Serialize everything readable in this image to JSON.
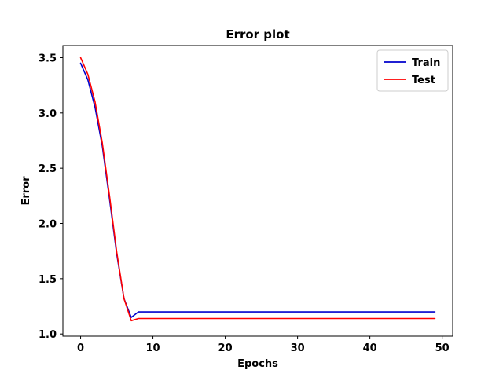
{
  "chart_data": {
    "type": "line",
    "title": "Error plot",
    "xlabel": "Epochs",
    "ylabel": "Error",
    "xlim": [
      -2.45,
      51.45
    ],
    "ylim": [
      0.98,
      3.61
    ],
    "xticks": [
      0,
      10,
      20,
      30,
      40,
      50
    ],
    "yticks": [
      1.0,
      1.5,
      2.0,
      2.5,
      3.0,
      3.5
    ],
    "ytick_labels": [
      "1.0",
      "1.5",
      "2.0",
      "2.5",
      "3.0",
      "3.5"
    ],
    "xtick_labels": [
      "0",
      "10",
      "20",
      "30",
      "40",
      "50"
    ],
    "grid": false,
    "legend": "top-right",
    "series": [
      {
        "name": "Train",
        "color": "#0000cc",
        "x": [
          0,
          1,
          2,
          3,
          4,
          5,
          6,
          7,
          8,
          9,
          10,
          11,
          12,
          13,
          14,
          15,
          16,
          17,
          18,
          19,
          20,
          21,
          22,
          23,
          24,
          25,
          26,
          27,
          28,
          29,
          30,
          31,
          32,
          33,
          34,
          35,
          36,
          37,
          38,
          39,
          40,
          41,
          42,
          43,
          44,
          45,
          46,
          47,
          48,
          49
        ],
        "y": [
          3.45,
          3.3,
          3.05,
          2.7,
          2.22,
          1.72,
          1.32,
          1.15,
          1.2,
          1.2,
          1.2,
          1.2,
          1.2,
          1.2,
          1.2,
          1.2,
          1.2,
          1.2,
          1.2,
          1.2,
          1.2,
          1.2,
          1.2,
          1.2,
          1.2,
          1.2,
          1.2,
          1.2,
          1.2,
          1.2,
          1.2,
          1.2,
          1.2,
          1.2,
          1.2,
          1.2,
          1.2,
          1.2,
          1.2,
          1.2,
          1.2,
          1.2,
          1.2,
          1.2,
          1.2,
          1.2,
          1.2,
          1.2,
          1.2,
          1.2
        ]
      },
      {
        "name": "Test",
        "color": "#ff0000",
        "x": [
          0,
          1,
          2,
          3,
          4,
          5,
          6,
          7,
          8,
          9,
          10,
          11,
          12,
          13,
          14,
          15,
          16,
          17,
          18,
          19,
          20,
          21,
          22,
          23,
          24,
          25,
          26,
          27,
          28,
          29,
          30,
          31,
          32,
          33,
          34,
          35,
          36,
          37,
          38,
          39,
          40,
          41,
          42,
          43,
          44,
          45,
          46,
          47,
          48,
          49
        ],
        "y": [
          3.5,
          3.35,
          3.1,
          2.73,
          2.25,
          1.74,
          1.32,
          1.12,
          1.14,
          1.14,
          1.14,
          1.14,
          1.14,
          1.14,
          1.14,
          1.14,
          1.14,
          1.14,
          1.14,
          1.14,
          1.14,
          1.14,
          1.14,
          1.14,
          1.14,
          1.14,
          1.14,
          1.14,
          1.14,
          1.14,
          1.14,
          1.14,
          1.14,
          1.14,
          1.14,
          1.14,
          1.14,
          1.14,
          1.14,
          1.14,
          1.14,
          1.14,
          1.14,
          1.14,
          1.14,
          1.14,
          1.14,
          1.14,
          1.14,
          1.14
        ]
      }
    ]
  }
}
